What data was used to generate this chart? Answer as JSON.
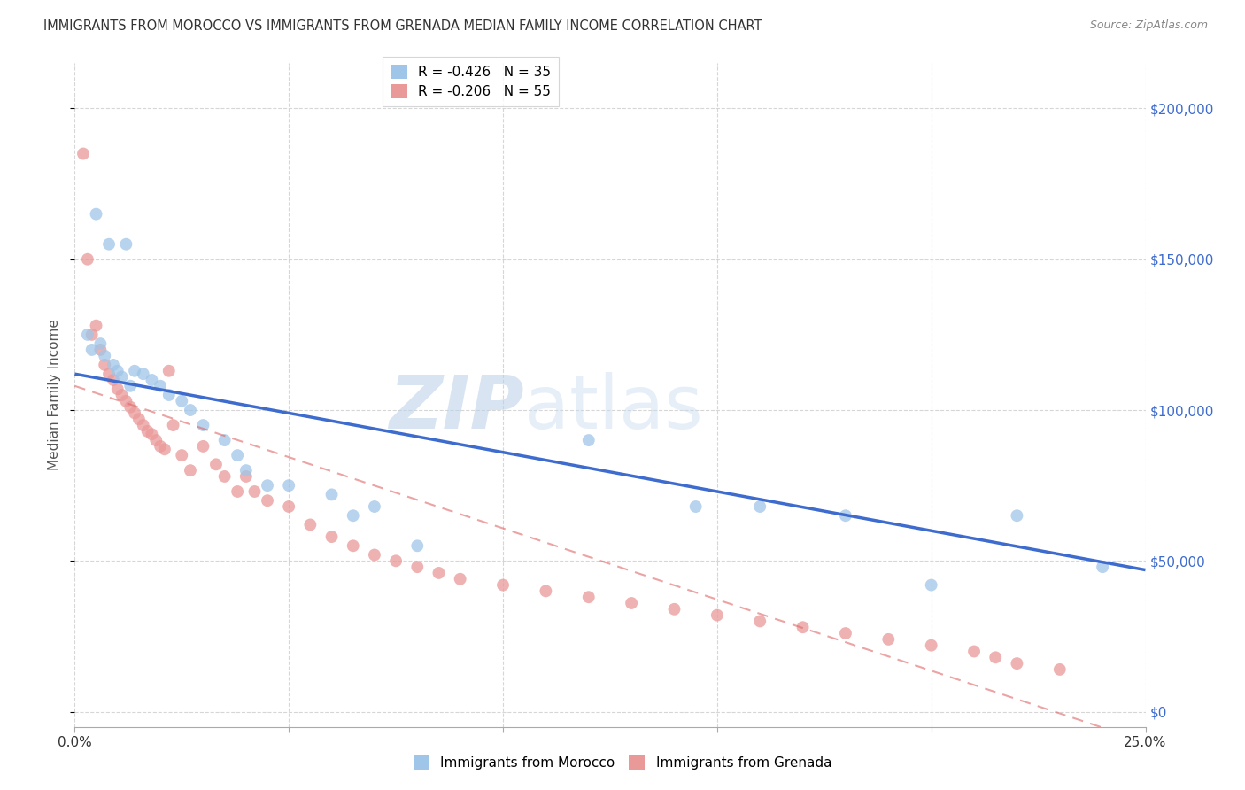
{
  "title": "IMMIGRANTS FROM MOROCCO VS IMMIGRANTS FROM GRENADA MEDIAN FAMILY INCOME CORRELATION CHART",
  "source": "Source: ZipAtlas.com",
  "ylabel": "Median Family Income",
  "ytick_values": [
    0,
    50000,
    100000,
    150000,
    200000
  ],
  "ylim": [
    -5000,
    215000
  ],
  "xlim": [
    0,
    0.25
  ],
  "color_morocco": "#9fc5e8",
  "color_grenada": "#ea9999",
  "color_morocco_line": "#3d6bce",
  "color_grenada_line": "#e06666",
  "watermark_zip": "ZIP",
  "watermark_atlas": "atlas",
  "morocco_scatter_x": [
    0.003,
    0.004,
    0.005,
    0.006,
    0.007,
    0.008,
    0.009,
    0.01,
    0.011,
    0.012,
    0.013,
    0.014,
    0.016,
    0.018,
    0.02,
    0.022,
    0.025,
    0.027,
    0.03,
    0.035,
    0.038,
    0.04,
    0.045,
    0.05,
    0.06,
    0.065,
    0.07,
    0.08,
    0.12,
    0.145,
    0.16,
    0.18,
    0.2,
    0.22,
    0.24
  ],
  "morocco_scatter_y": [
    125000,
    120000,
    165000,
    122000,
    118000,
    155000,
    115000,
    113000,
    111000,
    155000,
    108000,
    113000,
    112000,
    110000,
    108000,
    105000,
    103000,
    100000,
    95000,
    90000,
    85000,
    80000,
    75000,
    75000,
    72000,
    65000,
    68000,
    55000,
    90000,
    68000,
    68000,
    65000,
    42000,
    65000,
    48000
  ],
  "grenada_scatter_x": [
    0.002,
    0.003,
    0.004,
    0.005,
    0.006,
    0.007,
    0.008,
    0.009,
    0.01,
    0.011,
    0.012,
    0.013,
    0.014,
    0.015,
    0.016,
    0.017,
    0.018,
    0.019,
    0.02,
    0.021,
    0.022,
    0.023,
    0.025,
    0.027,
    0.03,
    0.033,
    0.035,
    0.038,
    0.04,
    0.042,
    0.045,
    0.05,
    0.055,
    0.06,
    0.065,
    0.07,
    0.075,
    0.08,
    0.085,
    0.09,
    0.1,
    0.11,
    0.12,
    0.13,
    0.14,
    0.15,
    0.16,
    0.17,
    0.18,
    0.19,
    0.2,
    0.21,
    0.215,
    0.22,
    0.23
  ],
  "grenada_scatter_y": [
    185000,
    150000,
    125000,
    128000,
    120000,
    115000,
    112000,
    110000,
    107000,
    105000,
    103000,
    101000,
    99000,
    97000,
    95000,
    93000,
    92000,
    90000,
    88000,
    87000,
    113000,
    95000,
    85000,
    80000,
    88000,
    82000,
    78000,
    73000,
    78000,
    73000,
    70000,
    68000,
    62000,
    58000,
    55000,
    52000,
    50000,
    48000,
    46000,
    44000,
    42000,
    40000,
    38000,
    36000,
    34000,
    32000,
    30000,
    28000,
    26000,
    24000,
    22000,
    20000,
    18000,
    16000,
    14000
  ]
}
